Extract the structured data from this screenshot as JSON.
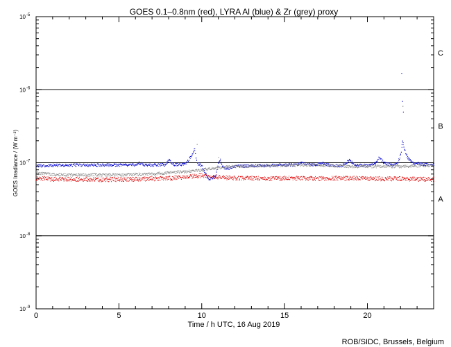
{
  "chart_data": {
    "type": "scatter",
    "title": "GOES 0.1–0.8nm (red), LYRA Al (blue) & Zr (grey) proxy",
    "xlabel": "Time / h UTC, 16 Aug 2019",
    "ylabel": "GOES Irradiance / (W m⁻²)",
    "credit": "ROB/SIDC, Brussels, Belgium",
    "xlim": [
      0,
      24
    ],
    "ylim": [
      1e-09,
      1e-05
    ],
    "yscale": "log",
    "x_ticks": [
      {
        "value": 0,
        "label": "0"
      },
      {
        "value": 5,
        "label": "5"
      },
      {
        "value": 10,
        "label": "10"
      },
      {
        "value": 15,
        "label": "15"
      },
      {
        "value": 20,
        "label": "20"
      }
    ],
    "y_ticks": [
      {
        "value": 1e-05,
        "base": "10",
        "exp": "-5"
      },
      {
        "value": 1e-06,
        "base": "10",
        "exp": "-6"
      },
      {
        "value": 1e-07,
        "base": "10",
        "exp": "-7"
      },
      {
        "value": 1e-08,
        "base": "10",
        "exp": "-8"
      },
      {
        "value": 1e-09,
        "base": "10",
        "exp": "-9"
      }
    ],
    "flare_class_lines": [
      1e-06,
      1e-07,
      1e-08
    ],
    "flare_classes": [
      {
        "label": "C",
        "value": 3.2e-06
      },
      {
        "label": "B",
        "value": 3.2e-07
      },
      {
        "label": "A",
        "value": 3.2e-08
      }
    ],
    "colors": {
      "goes": "#dd0000",
      "al": "#0000cc",
      "zr": "#888888",
      "axis": "#000000"
    },
    "series": [
      {
        "name": "GOES 0.1–0.8nm",
        "color": "#dd0000",
        "x": [
          0,
          1,
          2,
          3,
          4,
          5,
          6,
          7,
          8,
          9,
          10,
          10.5,
          11,
          12,
          13,
          14,
          15,
          16,
          17,
          18,
          19,
          20,
          21,
          22,
          23,
          24
        ],
        "y": [
          6.2e-08,
          6e-08,
          6e-08,
          6e-08,
          5.9e-08,
          6e-08,
          6e-08,
          6.1e-08,
          6.2e-08,
          6.4e-08,
          6.8e-08,
          6.6e-08,
          6.4e-08,
          6.2e-08,
          6.2e-08,
          6.1e-08,
          6.2e-08,
          6.2e-08,
          6.1e-08,
          6.2e-08,
          6.2e-08,
          6.1e-08,
          6.1e-08,
          6.1e-08,
          6e-08,
          6e-08
        ]
      },
      {
        "name": "LYRA Al proxy",
        "color": "#0000cc",
        "x": [
          0,
          1,
          2,
          3,
          4,
          5,
          6,
          6.2,
          6.5,
          7,
          7.8,
          8,
          8.3,
          9,
          9.4,
          9.55,
          9.7,
          10,
          10.4,
          10.8,
          11,
          11.1,
          11.3,
          11.6,
          12,
          13,
          14,
          15,
          15.8,
          16,
          16.5,
          17,
          17.3,
          17.6,
          18,
          18.5,
          18.9,
          19.2,
          19.6,
          20,
          20.5,
          20.7,
          21,
          21.5,
          21.8,
          22,
          22.1,
          22.2,
          22.4,
          22.7,
          23,
          23.5,
          24
        ],
        "y": [
          9.2e-08,
          9.3e-08,
          9.4e-08,
          9.4e-08,
          9.4e-08,
          9.4e-08,
          9.4e-08,
          1e-07,
          9.4e-08,
          9.4e-08,
          9.5e-08,
          1.1e-07,
          9.5e-08,
          9.6e-08,
          1.3e-07,
          1.6e-07,
          1e-07,
          9e-08,
          6e-08,
          6.5e-08,
          1e-07,
          1.1e-07,
          8.5e-08,
          8.5e-08,
          9e-08,
          9.2e-08,
          9.3e-08,
          9.4e-08,
          9.5e-08,
          1e-07,
          9.5e-08,
          9.6e-08,
          1e-07,
          9.4e-08,
          9.2e-08,
          9.3e-08,
          1.1e-07,
          9.6e-08,
          9.3e-08,
          9.3e-08,
          1e-07,
          1.2e-07,
          1e-07,
          9.4e-08,
          1e-07,
          1.3e-07,
          2e-07,
          1.6e-07,
          1.2e-07,
          1e-07,
          9.8e-08,
          9.6e-08,
          9.6e-08
        ]
      },
      {
        "name": "LYRA Zr proxy",
        "color": "#888888",
        "x": [
          0,
          1,
          2,
          3,
          4,
          5,
          6,
          7,
          7.8,
          8,
          9,
          9.5,
          10,
          10.5,
          11,
          11.3,
          12,
          13,
          14,
          15,
          16,
          17,
          18,
          19,
          20,
          21,
          22,
          23,
          24
        ],
        "y": [
          7.3e-08,
          7e-08,
          6.9e-08,
          6.9e-08,
          6.9e-08,
          6.9e-08,
          7e-08,
          7.1e-08,
          7.3e-08,
          7.5e-08,
          7.6e-08,
          7.8e-08,
          8e-08,
          8.4e-08,
          8.6e-08,
          8.8e-08,
          9e-08,
          9.1e-08,
          9.2e-08,
          9.3e-08,
          9.4e-08,
          9.4e-08,
          9.2e-08,
          9e-08,
          9e-08,
          9e-08,
          9e-08,
          9.2e-08,
          9.3e-08
        ]
      }
    ],
    "flare_points": [
      {
        "x": 22.05,
        "y": 1.7e-06,
        "color": "#0000cc"
      },
      {
        "x": 22.1,
        "y": 7e-07,
        "color": "#0000cc"
      },
      {
        "x": 22.15,
        "y": 5e-07,
        "color": "#0000cc"
      },
      {
        "x": 22.12,
        "y": 6e-07,
        "color": "#888888"
      },
      {
        "x": 9.7,
        "y": 1.8e-07,
        "color": "#888888"
      },
      {
        "x": 11.0,
        "y": 1.2e-07,
        "color": "#888888"
      }
    ]
  }
}
